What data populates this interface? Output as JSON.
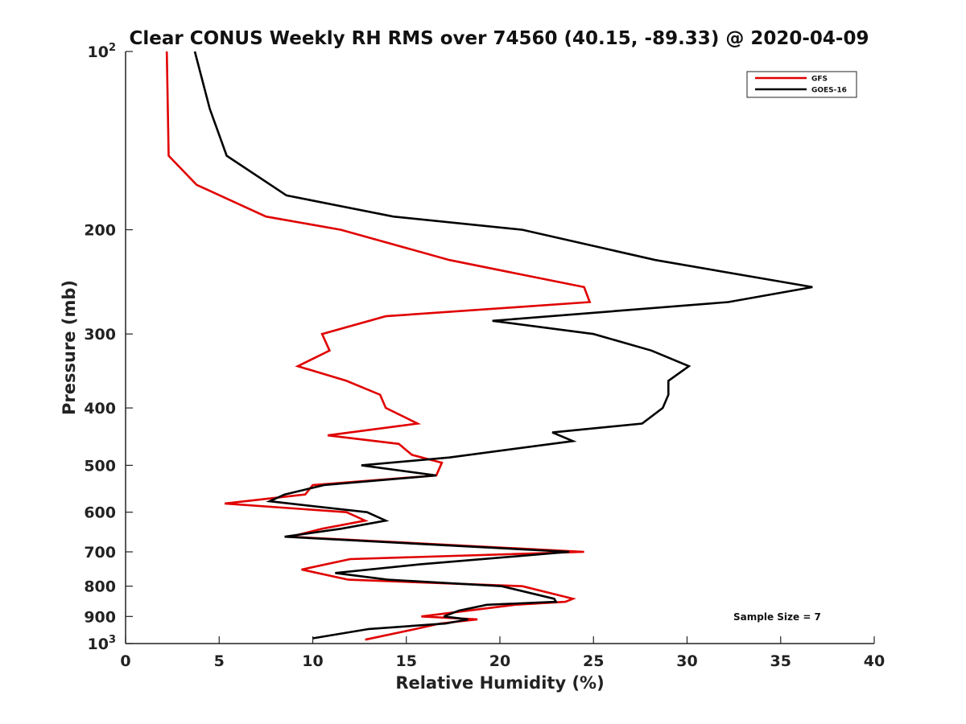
{
  "chart_data": {
    "type": "line",
    "title": "Clear CONUS Weekly RH RMS over 74560 (40.15, -89.33) @ 2020-04-09",
    "xlabel": "Relative Humidity (%)",
    "ylabel": "Pressure (mb)",
    "xlim": [
      0,
      40
    ],
    "ylim": [
      100,
      1000
    ],
    "y_scale": "log",
    "y_reversed": true,
    "x_ticks": [
      {
        "value": 0,
        "label": "0"
      },
      {
        "value": 5,
        "label": "5"
      },
      {
        "value": 10,
        "label": "10"
      },
      {
        "value": 15,
        "label": "15"
      },
      {
        "value": 20,
        "label": "20"
      },
      {
        "value": 25,
        "label": "25"
      },
      {
        "value": 30,
        "label": "30"
      },
      {
        "value": 35,
        "label": "35"
      },
      {
        "value": 40,
        "label": "40"
      }
    ],
    "y_ticks": [
      {
        "value": 100,
        "label": "10",
        "sup": "2"
      },
      {
        "value": 200,
        "label": "200"
      },
      {
        "value": 300,
        "label": "300"
      },
      {
        "value": 400,
        "label": "400"
      },
      {
        "value": 500,
        "label": "500"
      },
      {
        "value": 600,
        "label": "600"
      },
      {
        "value": 700,
        "label": "700"
      },
      {
        "value": 800,
        "label": "800"
      },
      {
        "value": 900,
        "label": "900"
      },
      {
        "value": 1000,
        "label": "10",
        "sup": "3"
      }
    ],
    "grid": false,
    "legend_position": "top-right",
    "annotation": "Sample Size = 7",
    "series": [
      {
        "name": "GFS",
        "color": "#e00000",
        "points": [
          [
            2.2,
            100
          ],
          [
            2.3,
            150
          ],
          [
            3.8,
            168
          ],
          [
            7.5,
            190
          ],
          [
            11.5,
            200
          ],
          [
            17.3,
            225
          ],
          [
            24.5,
            250
          ],
          [
            24.8,
            265
          ],
          [
            13.9,
            280
          ],
          [
            10.5,
            300
          ],
          [
            10.9,
            320
          ],
          [
            9.2,
            340
          ],
          [
            11.8,
            360
          ],
          [
            13.6,
            380
          ],
          [
            13.9,
            400
          ],
          [
            15.6,
            425
          ],
          [
            10.8,
            445
          ],
          [
            14.6,
            460
          ],
          [
            15.3,
            480
          ],
          [
            16.9,
            495
          ],
          [
            16.6,
            520
          ],
          [
            10.0,
            540
          ],
          [
            9.6,
            560
          ],
          [
            5.3,
            580
          ],
          [
            11.8,
            600
          ],
          [
            12.8,
            620
          ],
          [
            10.5,
            640
          ],
          [
            8.8,
            660
          ],
          [
            24.5,
            700
          ],
          [
            12.0,
            720
          ],
          [
            9.4,
            750
          ],
          [
            11.9,
            780
          ],
          [
            21.2,
            800
          ],
          [
            23.9,
            840
          ],
          [
            23.5,
            850
          ],
          [
            20.8,
            860
          ],
          [
            18.3,
            880
          ],
          [
            15.8,
            900
          ],
          [
            18.8,
            910
          ],
          [
            16.8,
            925
          ],
          [
            15.5,
            945
          ],
          [
            12.8,
            985
          ]
        ]
      },
      {
        "name": "GOES-16",
        "color": "#000000",
        "points": [
          [
            3.7,
            100
          ],
          [
            4.5,
            125
          ],
          [
            5.4,
            150
          ],
          [
            8.6,
            175
          ],
          [
            14.3,
            190
          ],
          [
            21.2,
            200
          ],
          [
            28.3,
            225
          ],
          [
            36.7,
            250
          ],
          [
            32.2,
            265
          ],
          [
            19.6,
            285
          ],
          [
            25.0,
            300
          ],
          [
            28.1,
            320
          ],
          [
            30.1,
            340
          ],
          [
            29.0,
            360
          ],
          [
            29.0,
            380
          ],
          [
            28.7,
            400
          ],
          [
            27.6,
            425
          ],
          [
            22.8,
            440
          ],
          [
            23.9,
            455
          ],
          [
            17.3,
            485
          ],
          [
            12.6,
            500
          ],
          [
            16.6,
            520
          ],
          [
            10.6,
            540
          ],
          [
            8.5,
            560
          ],
          [
            7.7,
            575
          ],
          [
            12.9,
            600
          ],
          [
            13.9,
            620
          ],
          [
            11.5,
            640
          ],
          [
            8.5,
            660
          ],
          [
            23.7,
            700
          ],
          [
            15.7,
            735
          ],
          [
            11.2,
            760
          ],
          [
            14.0,
            780
          ],
          [
            20.1,
            800
          ],
          [
            22.9,
            840
          ],
          [
            23.0,
            850
          ],
          [
            19.3,
            860
          ],
          [
            17.8,
            880
          ],
          [
            17.0,
            900
          ],
          [
            18.3,
            910
          ],
          [
            17.1,
            925
          ],
          [
            13.0,
            945
          ],
          [
            10.0,
            980
          ]
        ]
      }
    ]
  }
}
